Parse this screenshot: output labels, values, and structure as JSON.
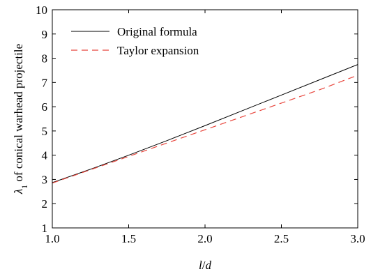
{
  "chart_data": {
    "type": "line",
    "xlabel_parts": [
      {
        "text": "l",
        "italic": true
      },
      {
        "text": "/",
        "italic": false
      },
      {
        "text": "d",
        "italic": true
      }
    ],
    "ylabel_parts": [
      {
        "text": "λ",
        "italic": true
      },
      {
        "text": "1",
        "sub": true
      },
      {
        "text": " of conical warhead projectile",
        "italic": false
      }
    ],
    "xlim": [
      1.0,
      3.0
    ],
    "ylim": [
      1,
      10
    ],
    "xticks": [
      1.0,
      1.5,
      2.0,
      2.5,
      3.0
    ],
    "xtick_labels": [
      "1.0",
      "1.5",
      "2.0",
      "2.5",
      "3.0"
    ],
    "yticks": [
      1,
      2,
      3,
      4,
      5,
      6,
      7,
      8,
      9,
      10
    ],
    "ytick_labels": [
      "1",
      "2",
      "3",
      "4",
      "5",
      "6",
      "7",
      "8",
      "9",
      "10"
    ],
    "grid": false,
    "legend_position": "top-left",
    "series": [
      {
        "name": "Original formula",
        "color": "#000000",
        "dash": "solid",
        "x": [
          1.0,
          1.25,
          1.5,
          1.75,
          2.0,
          2.25,
          2.5,
          2.75,
          3.0
        ],
        "y": [
          2.87,
          3.42,
          4.0,
          4.6,
          5.22,
          5.85,
          6.48,
          7.11,
          7.74
        ]
      },
      {
        "name": "Taylor expansion",
        "color": "#e8453c",
        "dash": "dashed",
        "x": [
          1.0,
          1.25,
          1.5,
          1.75,
          2.0,
          2.25,
          2.5,
          2.75,
          3.0
        ],
        "y": [
          2.85,
          3.4,
          3.95,
          4.5,
          5.05,
          5.6,
          6.15,
          6.7,
          7.3
        ]
      }
    ]
  }
}
